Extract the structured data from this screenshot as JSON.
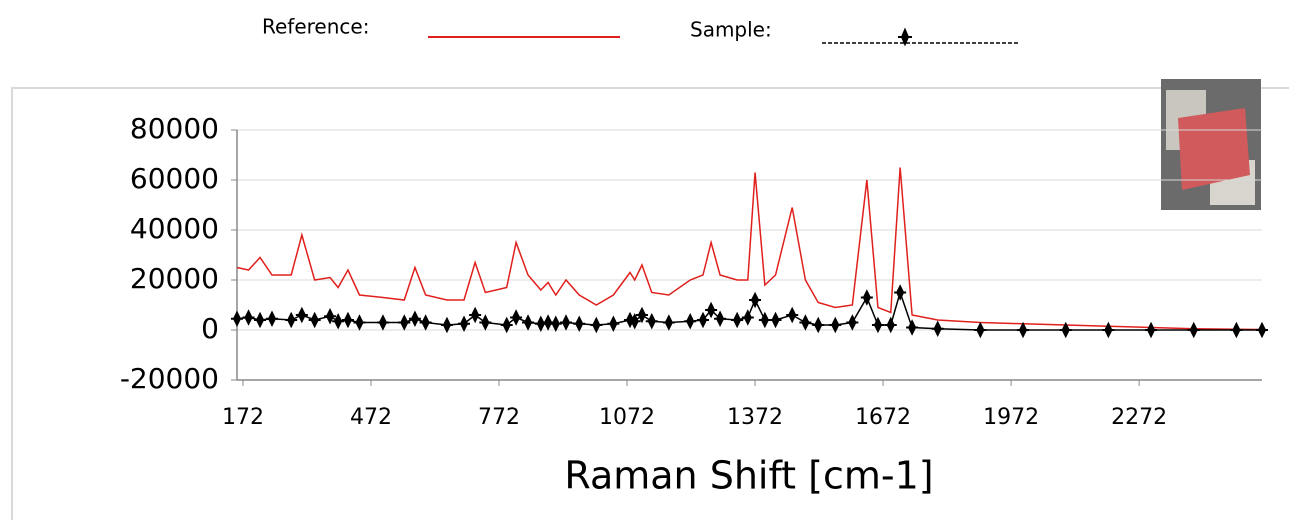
{
  "chart_data": {
    "type": "line",
    "x_label": "Raman Shift [cm-1]",
    "x": [
      158,
      185,
      212,
      240,
      285,
      310,
      340,
      376,
      395,
      418,
      445,
      500,
      550,
      575,
      600,
      650,
      690,
      716,
      740,
      790,
      812,
      840,
      870,
      887,
      905,
      929,
      960,
      1000,
      1040,
      1079,
      1090,
      1107,
      1130,
      1170,
      1220,
      1250,
      1269,
      1290,
      1330,
      1355,
      1372,
      1395,
      1420,
      1459,
      1490,
      1520,
      1560,
      1600,
      1634,
      1660,
      1690,
      1712,
      1740,
      1800,
      1900,
      2000,
      2100,
      2200,
      2300,
      2400,
      2500,
      2560
    ],
    "series": [
      {
        "name": "Reference:",
        "color": "#e0201c",
        "markers": false,
        "values": [
          25000,
          24000,
          29000,
          22000,
          22000,
          38000,
          20000,
          21000,
          17000,
          24000,
          14000,
          13000,
          12000,
          25000,
          14000,
          12000,
          12000,
          27000,
          15000,
          17000,
          35000,
          22000,
          16000,
          19000,
          14000,
          20000,
          14000,
          10000,
          14000,
          23000,
          20000,
          26000,
          15000,
          14000,
          20000,
          22000,
          35000,
          22000,
          20000,
          20000,
          63000,
          18000,
          22000,
          49000,
          20000,
          11000,
          9000,
          10000,
          60000,
          9000,
          7000,
          65000,
          6000,
          4000,
          3000,
          2500,
          2000,
          1500,
          1000,
          500,
          300,
          200
        ]
      },
      {
        "name": "Sample:",
        "color": "#000000",
        "markers": true,
        "values": [
          4500,
          5000,
          4000,
          4500,
          4000,
          6000,
          4000,
          5500,
          3500,
          4000,
          3000,
          3000,
          3000,
          4500,
          3000,
          2000,
          2500,
          6000,
          3000,
          2000,
          5000,
          3000,
          2500,
          3000,
          2500,
          3000,
          2500,
          2000,
          2500,
          4000,
          3500,
          6000,
          3500,
          3000,
          3500,
          4000,
          8000,
          4500,
          4000,
          5000,
          12000,
          4000,
          4000,
          6000,
          3000,
          2000,
          2000,
          3000,
          13000,
          2000,
          2000,
          15000,
          1000,
          500,
          0,
          0,
          0,
          0,
          0,
          0,
          0,
          0
        ]
      }
    ],
    "xlim": [
      158,
      2560
    ],
    "xticks": [
      172,
      472,
      772,
      1072,
      1372,
      1672,
      1972,
      2272
    ],
    "ylim": [
      -20000,
      80000
    ],
    "yticks": [
      -20000,
      0,
      20000,
      40000,
      60000,
      80000
    ],
    "grid": true
  }
}
